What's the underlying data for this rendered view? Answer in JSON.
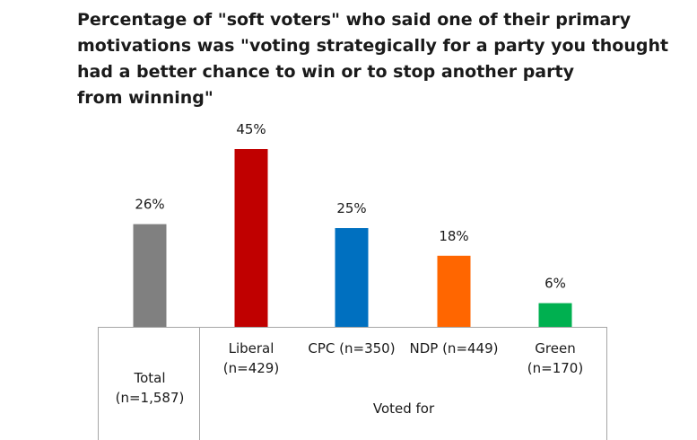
{
  "title_lines": [
    "Percentage of \"soft voters\" who said one of their primary",
    "motivations was \"voting  strategically for a party you thought",
    "had a better chance to win or to stop another party",
    "from winning\""
  ],
  "chart_data": {
    "type": "bar",
    "title": "Percentage of \"soft voters\" who said one of their primary motivations was \"voting  strategically for a party you thought had a better chance to win or to stop another party from winning\"",
    "categories": [
      {
        "label_lines": [
          "Total",
          "(n=1,587)"
        ],
        "value": 26,
        "data_label": "26%",
        "color": "#808080"
      },
      {
        "label_lines": [
          "Liberal",
          "(n=429)"
        ],
        "value": 45,
        "data_label": "45%",
        "color": "#C00000"
      },
      {
        "label_lines": [
          "CPC (n=350)"
        ],
        "value": 25,
        "data_label": "25%",
        "color": "#0070C0"
      },
      {
        "label_lines": [
          "NDP (n=449)"
        ],
        "value": 18,
        "data_label": "18%",
        "color": "#FF6600"
      },
      {
        "label_lines": [
          "Green",
          "(n=170)"
        ],
        "value": 6,
        "data_label": "6%",
        "color": "#00B050"
      }
    ],
    "group_label": "Voted for",
    "ylim": [
      0,
      50
    ],
    "grid": false,
    "legend": "none"
  }
}
